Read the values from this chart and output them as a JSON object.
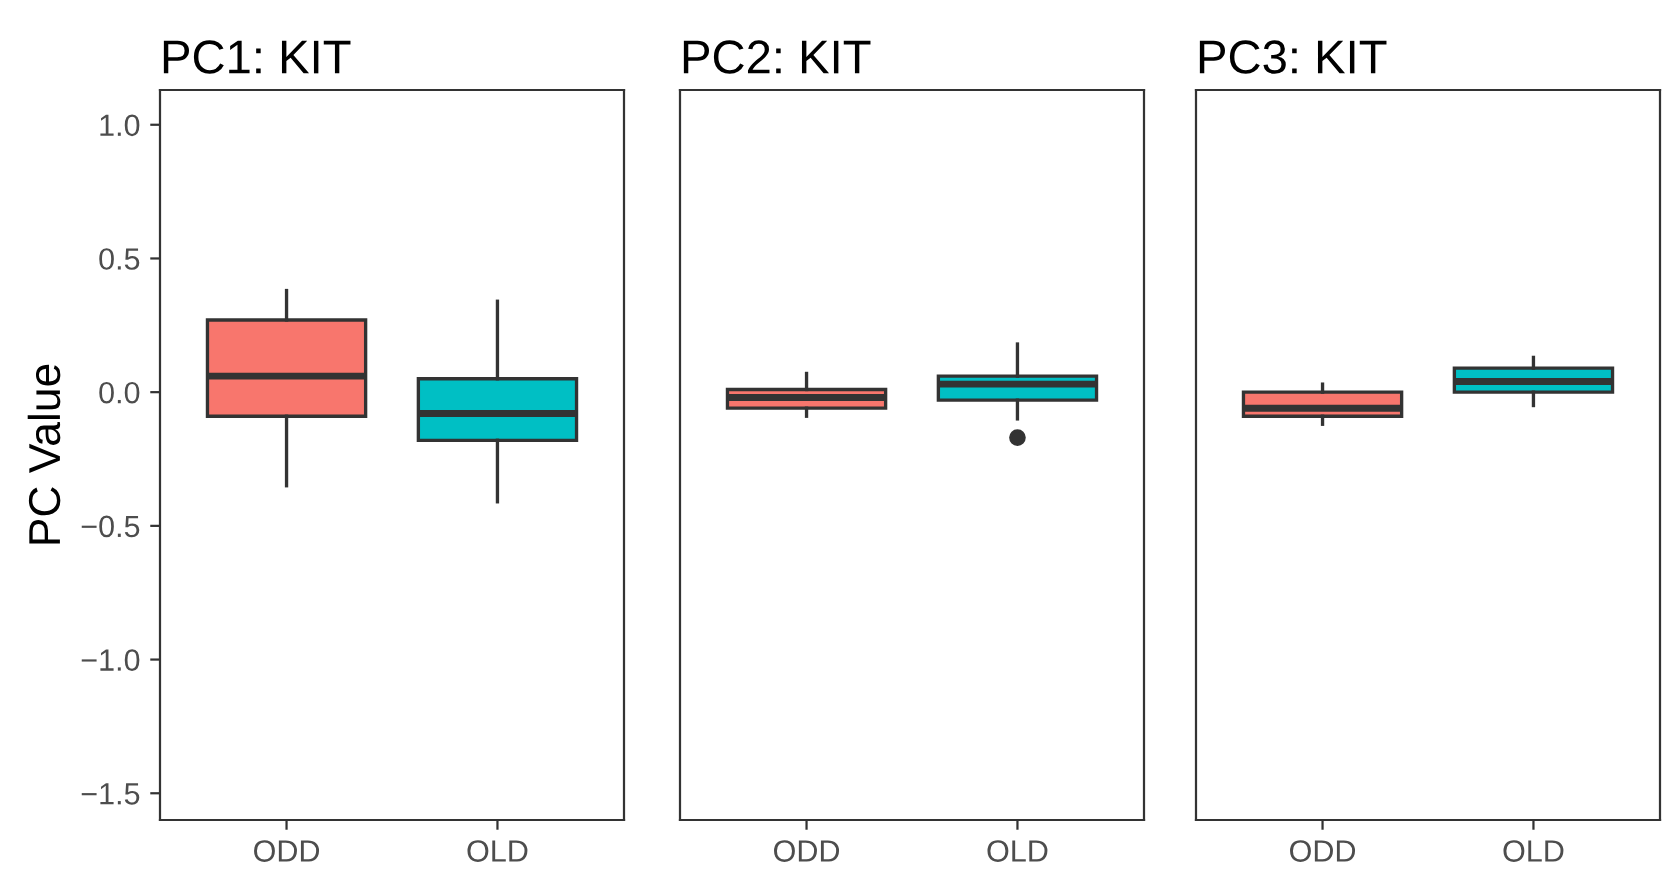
{
  "chart_data": [
    {
      "type": "box",
      "title": "PC1: KIT",
      "ylabel": "PC Value",
      "categories": [
        "ODD",
        "OLD"
      ],
      "colors": [
        "#f8766d",
        "#00bfc4"
      ],
      "boxes": [
        {
          "low": -0.35,
          "q1": -0.09,
          "median": 0.06,
          "q3": 0.27,
          "high": 0.38
        },
        {
          "low": -0.41,
          "q1": -0.18,
          "median": -0.08,
          "q3": 0.05,
          "high": 0.34
        }
      ],
      "ylim": [
        -1.6,
        1.13
      ],
      "yticks": [
        {
          "value": -1.5,
          "label": "−1.5"
        },
        {
          "value": -1.0,
          "label": "−1.0"
        },
        {
          "value": -0.5,
          "label": "−0.5"
        },
        {
          "value": 0.0,
          "label": "0.0"
        },
        {
          "value": 0.5,
          "label": "0.5"
        },
        {
          "value": 1.0,
          "label": "1.0"
        }
      ],
      "grid": false
    },
    {
      "type": "box",
      "title": "PC2: KIT",
      "categories": [
        "ODD",
        "OLD"
      ],
      "colors": [
        "#f8766d",
        "#00bfc4"
      ],
      "boxes": [
        {
          "low": -0.09,
          "q1": -0.06,
          "median": -0.02,
          "q3": 0.01,
          "high": 0.07
        },
        {
          "low": -0.1,
          "q1": -0.03,
          "median": 0.03,
          "q3": 0.06,
          "high": 0.18,
          "outliers": [
            -0.17
          ]
        }
      ],
      "ylim": [
        -1.6,
        1.13
      ],
      "tick_labels": "x",
      "grid": false
    },
    {
      "type": "box",
      "title": "PC3: KIT",
      "categories": [
        "ODD",
        "OLD"
      ],
      "colors": [
        "#f8766d",
        "#00bfc4"
      ],
      "boxes": [
        {
          "low": -0.12,
          "q1": -0.09,
          "median": -0.06,
          "q3": 0.0,
          "high": 0.03
        },
        {
          "low": -0.05,
          "q1": 0.0,
          "median": 0.04,
          "q3": 0.09,
          "high": 0.13
        }
      ],
      "ylim": [
        -1.6,
        1.13
      ],
      "tick_labels": "x",
      "grid": false
    }
  ]
}
